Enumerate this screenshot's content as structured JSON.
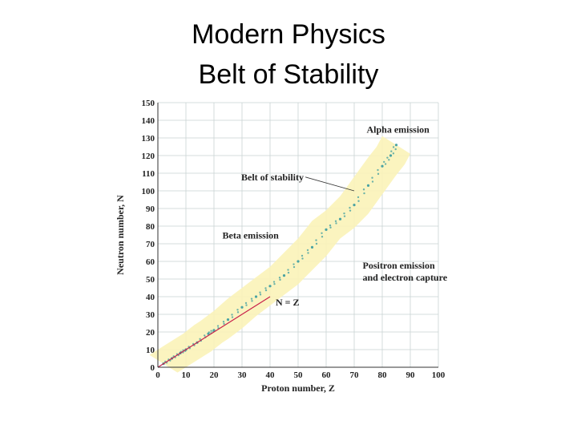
{
  "slide": {
    "title_line1": "Modern Physics",
    "title_line2": "Belt of Stability"
  },
  "chart_data": {
    "type": "scatter",
    "title": "",
    "xlabel": "Proton number, Z",
    "ylabel": "Neutron number, N",
    "xlim": [
      0,
      100
    ],
    "ylim": [
      0,
      150
    ],
    "xticks": [
      0,
      10,
      20,
      30,
      40,
      50,
      60,
      70,
      80,
      90,
      100
    ],
    "yticks": [
      0,
      10,
      20,
      30,
      40,
      50,
      60,
      70,
      80,
      90,
      100,
      110,
      120,
      130,
      140,
      150
    ],
    "grid": true,
    "series": [
      {
        "name": "Belt of stability",
        "color": "#4aa3a3",
        "band_color": "#fbf3b8",
        "points": [
          [
            2,
            2
          ],
          [
            5,
            5
          ],
          [
            8,
            8
          ],
          [
            10,
            10
          ],
          [
            14,
            14
          ],
          [
            18,
            19
          ],
          [
            20,
            21
          ],
          [
            25,
            27
          ],
          [
            30,
            34
          ],
          [
            35,
            40
          ],
          [
            40,
            46
          ],
          [
            45,
            52
          ],
          [
            50,
            60
          ],
          [
            55,
            68
          ],
          [
            60,
            78
          ],
          [
            65,
            84
          ],
          [
            70,
            92
          ],
          [
            75,
            103
          ],
          [
            80,
            114
          ],
          [
            83,
            120
          ],
          [
            85,
            126
          ]
        ]
      },
      {
        "name": "N = Z",
        "color": "#c8204a",
        "line": [
          [
            0,
            0
          ],
          [
            40,
            40
          ]
        ]
      }
    ],
    "annotations": [
      {
        "text": "Alpha emission",
        "x": 75,
        "y": 133
      },
      {
        "text": "Belt of stability",
        "x": 52,
        "y": 106
      },
      {
        "text": "Beta emission",
        "x": 23,
        "y": 73
      },
      {
        "text": "Positron emission",
        "x": 73,
        "y": 56
      },
      {
        "text": "and electron capture",
        "x": 73,
        "y": 49
      },
      {
        "text": "N = Z",
        "x": 42,
        "y": 35
      }
    ]
  }
}
